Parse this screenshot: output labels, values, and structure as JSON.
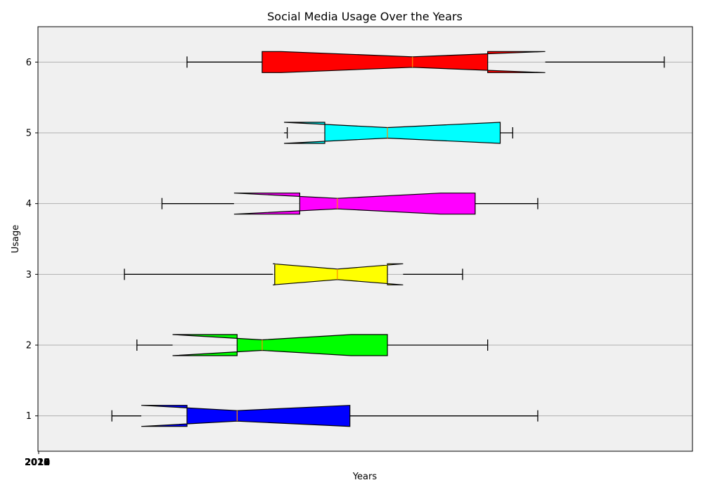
{
  "chart_data": {
    "type": "boxplot",
    "orientation": "horizontal",
    "notched": true,
    "title": "Social Media Usage Over the Years",
    "xlabel": "Years",
    "ylabel": "Usage",
    "x_tick_labels": [
      "2010",
      "2012",
      "2014",
      "2016",
      "2018",
      "2020"
    ],
    "xlim": [
      0,
      1045
    ],
    "ylim": [
      0.5,
      6.5
    ],
    "y_ticks": [
      "1",
      "2",
      "3",
      "4",
      "5",
      "6"
    ],
    "grid": "horizontal",
    "background_color": "#f0f0f0",
    "median_color": "#ff8c00",
    "boxes": [
      {
        "position": 1,
        "color": "#0000ff",
        "whisker_low": 118,
        "q1": 238,
        "median": 318,
        "q3": 498,
        "whisker_high": 798,
        "notch_low": 165,
        "notch_high": 498
      },
      {
        "position": 2,
        "color": "#00ff00",
        "whisker_low": 158,
        "q1": 318,
        "median": 358,
        "q3": 558,
        "whisker_high": 718,
        "notch_low": 215,
        "notch_high": 500
      },
      {
        "position": 3,
        "color": "#ffff00",
        "whisker_low": 138,
        "q1": 378,
        "median": 478,
        "q3": 558,
        "whisker_high": 678,
        "notch_low": 375,
        "notch_high": 583
      },
      {
        "position": 4,
        "color": "#ff00ff",
        "whisker_low": 198,
        "q1": 418,
        "median": 478,
        "q3": 698,
        "whisker_high": 798,
        "notch_low": 313,
        "notch_high": 643
      },
      {
        "position": 5,
        "color": "#00ffff",
        "whisker_low": 398,
        "q1": 458,
        "median": 558,
        "q3": 738,
        "whisker_high": 758,
        "notch_low": 393,
        "notch_high": 738
      },
      {
        "position": 6,
        "color": "#ff0000",
        "whisker_low": 238,
        "q1": 358,
        "median": 598,
        "q3": 718,
        "whisker_high": 1000,
        "notch_low": 388,
        "notch_high": 810
      }
    ]
  }
}
